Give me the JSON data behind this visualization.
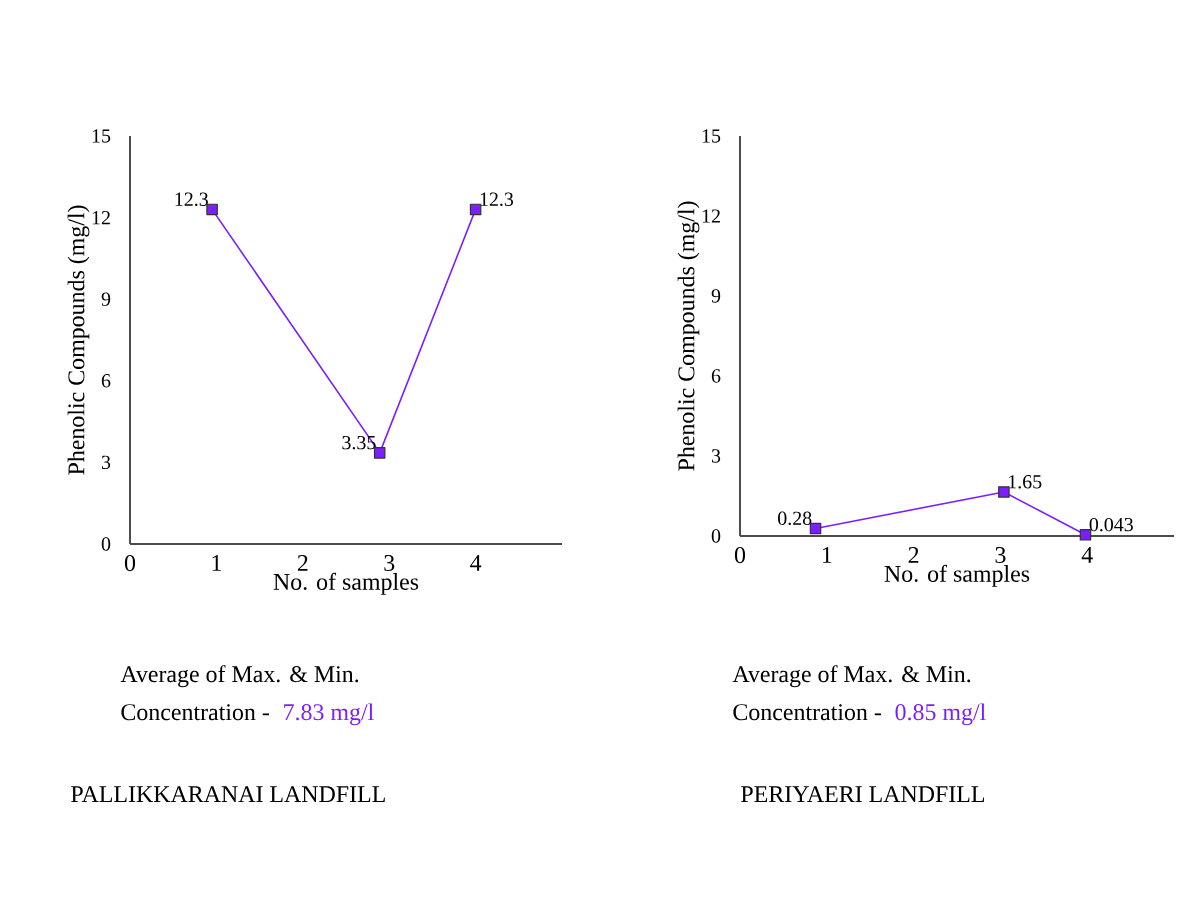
{
  "chart_data": [
    {
      "type": "line",
      "title": "PALLIKKARANAI  LANDFILL",
      "xlabel": "No. of  samples",
      "ylabel": "Phenolic Compounds (mg/l)",
      "x": [
        0.95,
        2.89,
        4
      ],
      "values": [
        12.3,
        3.35,
        12.3
      ],
      "color": "#7b1fff",
      "marker": "square",
      "data_labels": true,
      "xlim": [
        0,
        5
      ],
      "ylim": [
        0,
        15
      ],
      "xticks": [
        0,
        1,
        2,
        3,
        4
      ],
      "yticks": [
        0,
        3,
        6,
        9,
        12,
        15
      ],
      "annotations": [
        "Average of Max. & Min.",
        "Concentration -",
        "7.83 mg/l"
      ]
    },
    {
      "type": "line",
      "title": "PERIYAERI  LANDFILL",
      "xlabel": "No. of  samples",
      "ylabel": "Phenolic Compounds (mg/l)",
      "x": [
        0.87,
        3.04,
        3.98
      ],
      "values": [
        0.28,
        1.65,
        0.043
      ],
      "color": "#7b1fff",
      "marker": "square",
      "data_labels": true,
      "xlim": [
        0,
        5
      ],
      "ylim": [
        0,
        15
      ],
      "xticks": [
        0,
        1,
        2,
        3,
        4
      ],
      "yticks": [
        0,
        3,
        6,
        9,
        12,
        15
      ],
      "annotations": [
        "Average of Max. & Min.",
        "Concentration -",
        "0.85 mg/l"
      ]
    }
  ]
}
